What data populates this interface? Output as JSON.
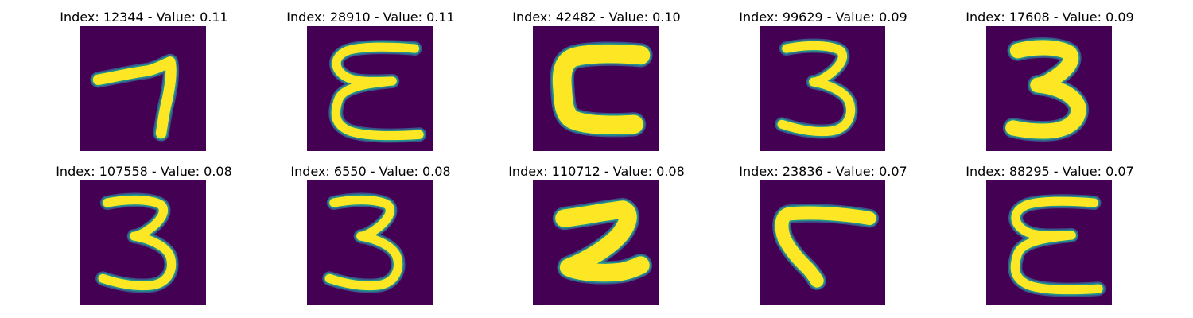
{
  "colors": {
    "background": "#440154",
    "foreground": "#fde725",
    "edge": "#21918c",
    "edge_outer": "#3b528b"
  },
  "figure": {
    "panels": [
      {
        "title": "Index: 12344 - Value: 0.11",
        "glyph": "7"
      },
      {
        "title": "Index: 28910 - Value: 0.11",
        "glyph": "reversed-3"
      },
      {
        "title": "Index: 42482 - Value: 0.10",
        "glyph": "blocky-c"
      },
      {
        "title": "Index: 99629 - Value: 0.09",
        "glyph": "3"
      },
      {
        "title": "Index: 17608 - Value: 0.09",
        "glyph": "bold-3"
      },
      {
        "title": "Index: 107558 - Value: 0.08",
        "glyph": "3"
      },
      {
        "title": "Index: 6550 - Value: 0.08",
        "glyph": "3"
      },
      {
        "title": "Index: 110712 - Value: 0.08",
        "glyph": "bold-2"
      },
      {
        "title": "Index: 23836 - Value: 0.07",
        "glyph": "rotated-l"
      },
      {
        "title": "Index: 88295 - Value: 0.07",
        "glyph": "reversed-3"
      }
    ]
  }
}
